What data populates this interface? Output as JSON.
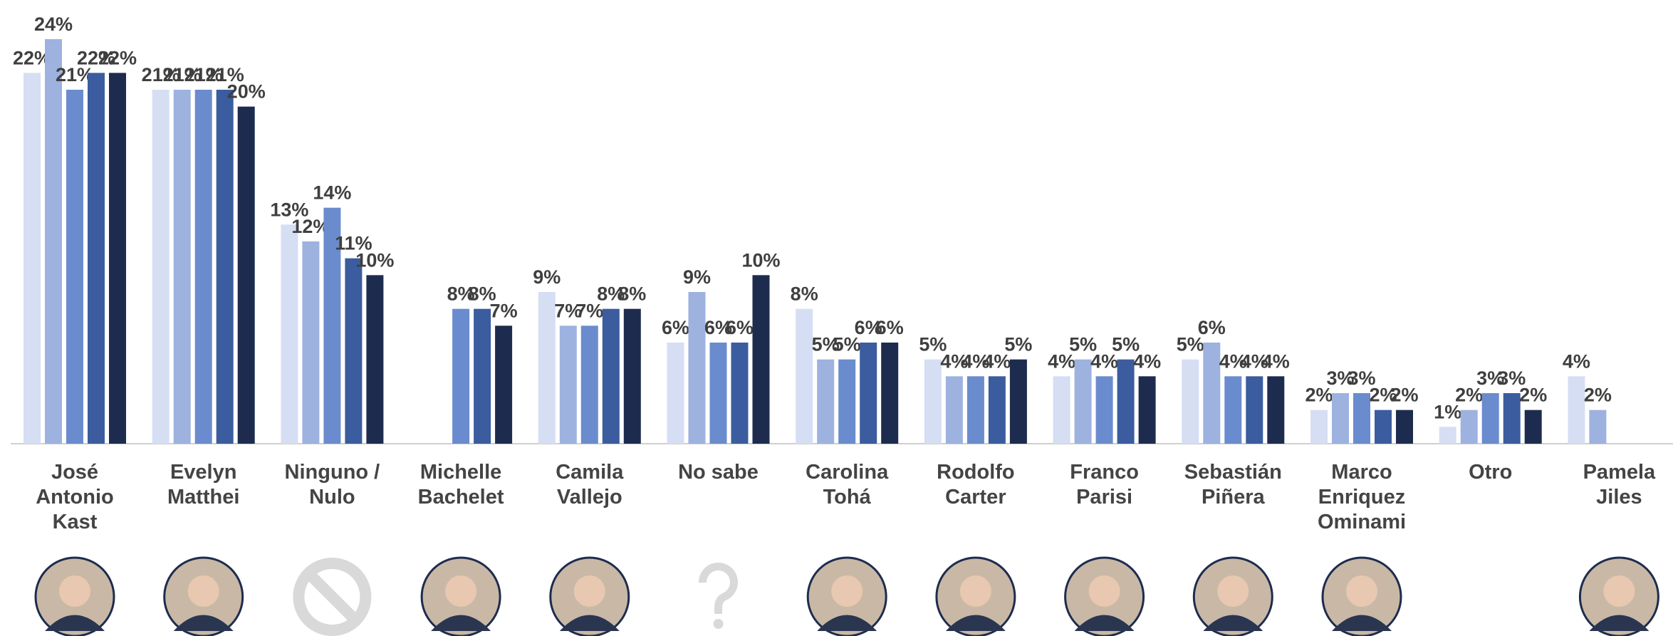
{
  "chart_data": {
    "type": "bar",
    "categories": [
      "José Antonio Kast",
      "Evelyn Matthei",
      "Ninguno / Nulo",
      "Michelle Bachelet",
      "Camila Vallejo",
      "No sabe",
      "Carolina Tohá",
      "Rodolfo Carter",
      "Franco Parisi",
      "Sebastián Piñera",
      "Marco Enriquez Ominami",
      "Otro",
      "Pamela Jiles"
    ],
    "series": [
      {
        "color": "#d5def3",
        "values": [
          22,
          21,
          13,
          null,
          9,
          6,
          8,
          5,
          4,
          5,
          2,
          1,
          4
        ],
        "value_labels": [
          "22%",
          "21%",
          "13%",
          null,
          "9%",
          "6%",
          "8%",
          "5%",
          "4%",
          "5%",
          "2%",
          "1%",
          "4%"
        ]
      },
      {
        "color": "#9db2df",
        "values": [
          24,
          21,
          12,
          null,
          7,
          9,
          5,
          4,
          5,
          6,
          3,
          2,
          2
        ],
        "value_labels": [
          "24%",
          "21%",
          "12%",
          null,
          "7%",
          "9%",
          "5%",
          "4%",
          "5%",
          "6%",
          "3%",
          "2%",
          "2%"
        ]
      },
      {
        "color": "#6a8cce",
        "values": [
          21,
          21,
          14,
          8,
          7,
          6,
          5,
          4,
          4,
          4,
          3,
          3,
          null
        ],
        "value_labels": [
          "21%",
          "21%",
          "14%",
          "8%",
          "7%",
          "6%",
          "5%",
          "4%",
          "4%",
          "4%",
          "3%",
          "3%",
          null
        ]
      },
      {
        "color": "#3b5c9e",
        "values": [
          22,
          21,
          11,
          8,
          8,
          6,
          6,
          4,
          5,
          4,
          2,
          3,
          null
        ],
        "value_labels": [
          "22%",
          "21%",
          "11%",
          "8%",
          "8%",
          "6%",
          "6%",
          "4%",
          "5%",
          "4%",
          "2%",
          "3%",
          null
        ]
      },
      {
        "color": "#1d2c4e",
        "values": [
          22,
          20,
          10,
          7,
          8,
          10,
          6,
          5,
          4,
          4,
          2,
          2,
          null
        ],
        "value_labels": [
          "22%",
          "20%",
          "10%",
          "7%",
          "8%",
          "10%",
          "6%",
          "5%",
          "4%",
          "4%",
          "2%",
          "2%",
          null
        ]
      }
    ],
    "ylim": [
      0,
      24
    ]
  }
}
